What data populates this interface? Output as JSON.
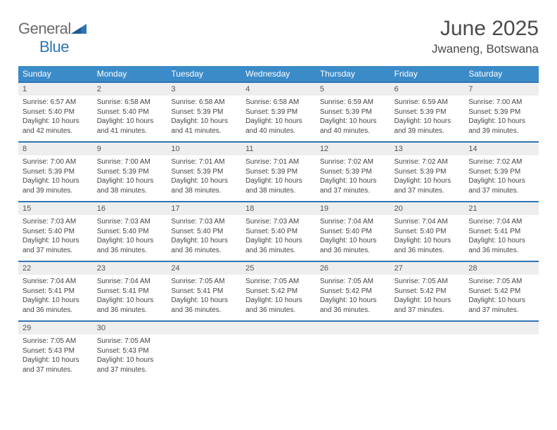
{
  "brand": {
    "general": "General",
    "blue": "Blue"
  },
  "title": {
    "month": "June 2025",
    "location": "Jwaneng, Botswana"
  },
  "colors": {
    "header_bg": "#3b8bc9",
    "header_fg": "#ffffff",
    "row_border": "#2f75b5",
    "daynum_bg": "#eeeeee",
    "text": "#444444"
  },
  "weekdays": [
    "Sunday",
    "Monday",
    "Tuesday",
    "Wednesday",
    "Thursday",
    "Friday",
    "Saturday"
  ],
  "calendar": {
    "first_weekday_index": 0,
    "days": [
      {
        "n": 1,
        "sunrise": "6:57 AM",
        "sunset": "5:40 PM",
        "daylight": "10 hours and 42 minutes."
      },
      {
        "n": 2,
        "sunrise": "6:58 AM",
        "sunset": "5:40 PM",
        "daylight": "10 hours and 41 minutes."
      },
      {
        "n": 3,
        "sunrise": "6:58 AM",
        "sunset": "5:39 PM",
        "daylight": "10 hours and 41 minutes."
      },
      {
        "n": 4,
        "sunrise": "6:58 AM",
        "sunset": "5:39 PM",
        "daylight": "10 hours and 40 minutes."
      },
      {
        "n": 5,
        "sunrise": "6:59 AM",
        "sunset": "5:39 PM",
        "daylight": "10 hours and 40 minutes."
      },
      {
        "n": 6,
        "sunrise": "6:59 AM",
        "sunset": "5:39 PM",
        "daylight": "10 hours and 39 minutes."
      },
      {
        "n": 7,
        "sunrise": "7:00 AM",
        "sunset": "5:39 PM",
        "daylight": "10 hours and 39 minutes."
      },
      {
        "n": 8,
        "sunrise": "7:00 AM",
        "sunset": "5:39 PM",
        "daylight": "10 hours and 39 minutes."
      },
      {
        "n": 9,
        "sunrise": "7:00 AM",
        "sunset": "5:39 PM",
        "daylight": "10 hours and 38 minutes."
      },
      {
        "n": 10,
        "sunrise": "7:01 AM",
        "sunset": "5:39 PM",
        "daylight": "10 hours and 38 minutes."
      },
      {
        "n": 11,
        "sunrise": "7:01 AM",
        "sunset": "5:39 PM",
        "daylight": "10 hours and 38 minutes."
      },
      {
        "n": 12,
        "sunrise": "7:02 AM",
        "sunset": "5:39 PM",
        "daylight": "10 hours and 37 minutes."
      },
      {
        "n": 13,
        "sunrise": "7:02 AM",
        "sunset": "5:39 PM",
        "daylight": "10 hours and 37 minutes."
      },
      {
        "n": 14,
        "sunrise": "7:02 AM",
        "sunset": "5:39 PM",
        "daylight": "10 hours and 37 minutes."
      },
      {
        "n": 15,
        "sunrise": "7:03 AM",
        "sunset": "5:40 PM",
        "daylight": "10 hours and 37 minutes."
      },
      {
        "n": 16,
        "sunrise": "7:03 AM",
        "sunset": "5:40 PM",
        "daylight": "10 hours and 36 minutes."
      },
      {
        "n": 17,
        "sunrise": "7:03 AM",
        "sunset": "5:40 PM",
        "daylight": "10 hours and 36 minutes."
      },
      {
        "n": 18,
        "sunrise": "7:03 AM",
        "sunset": "5:40 PM",
        "daylight": "10 hours and 36 minutes."
      },
      {
        "n": 19,
        "sunrise": "7:04 AM",
        "sunset": "5:40 PM",
        "daylight": "10 hours and 36 minutes."
      },
      {
        "n": 20,
        "sunrise": "7:04 AM",
        "sunset": "5:40 PM",
        "daylight": "10 hours and 36 minutes."
      },
      {
        "n": 21,
        "sunrise": "7:04 AM",
        "sunset": "5:41 PM",
        "daylight": "10 hours and 36 minutes."
      },
      {
        "n": 22,
        "sunrise": "7:04 AM",
        "sunset": "5:41 PM",
        "daylight": "10 hours and 36 minutes."
      },
      {
        "n": 23,
        "sunrise": "7:04 AM",
        "sunset": "5:41 PM",
        "daylight": "10 hours and 36 minutes."
      },
      {
        "n": 24,
        "sunrise": "7:05 AM",
        "sunset": "5:41 PM",
        "daylight": "10 hours and 36 minutes."
      },
      {
        "n": 25,
        "sunrise": "7:05 AM",
        "sunset": "5:42 PM",
        "daylight": "10 hours and 36 minutes."
      },
      {
        "n": 26,
        "sunrise": "7:05 AM",
        "sunset": "5:42 PM",
        "daylight": "10 hours and 36 minutes."
      },
      {
        "n": 27,
        "sunrise": "7:05 AM",
        "sunset": "5:42 PM",
        "daylight": "10 hours and 37 minutes."
      },
      {
        "n": 28,
        "sunrise": "7:05 AM",
        "sunset": "5:42 PM",
        "daylight": "10 hours and 37 minutes."
      },
      {
        "n": 29,
        "sunrise": "7:05 AM",
        "sunset": "5:43 PM",
        "daylight": "10 hours and 37 minutes."
      },
      {
        "n": 30,
        "sunrise": "7:05 AM",
        "sunset": "5:43 PM",
        "daylight": "10 hours and 37 minutes."
      }
    ],
    "labels": {
      "sunrise": "Sunrise:",
      "sunset": "Sunset:",
      "daylight": "Daylight:"
    }
  }
}
